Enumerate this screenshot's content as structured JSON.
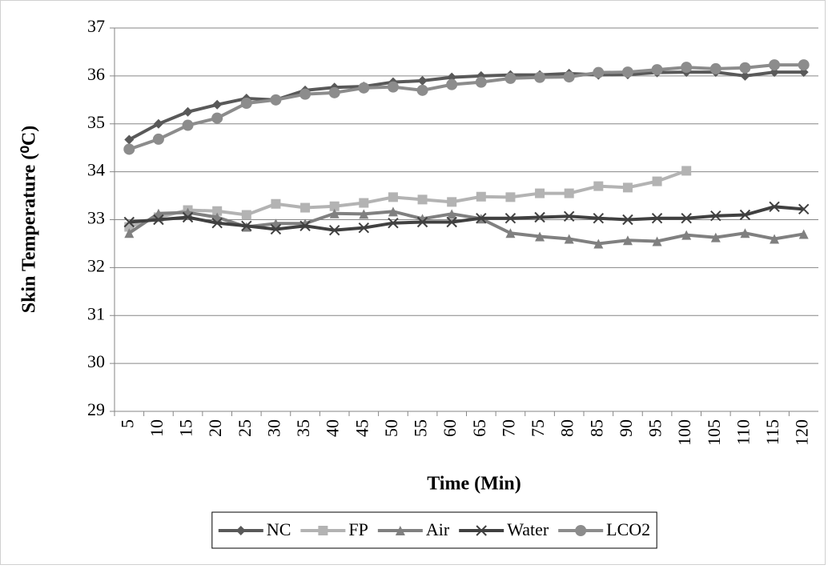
{
  "chart_data": {
    "type": "line",
    "x_label": "Time (Min)",
    "y_label": "Skin Temperature (⁰C)",
    "categories": [
      "5",
      "10",
      "15",
      "20",
      "25",
      "30",
      "35",
      "40",
      "45",
      "50",
      "55",
      "60",
      "65",
      "70",
      "75",
      "80",
      "85",
      "90",
      "95",
      "100",
      "105",
      "110",
      "115",
      "120"
    ],
    "ylim": [
      29,
      37
    ],
    "yticks": [
      29,
      30,
      31,
      32,
      33,
      34,
      35,
      36,
      37
    ],
    "grid": true,
    "legend": "bottom",
    "series": [
      {
        "name": "NC",
        "color": "#595959",
        "marker": "diamond",
        "values": [
          34.67,
          35.0,
          35.25,
          35.4,
          35.53,
          35.5,
          35.7,
          35.76,
          35.78,
          35.87,
          35.9,
          35.97,
          36.0,
          36.02,
          36.02,
          36.05,
          36.02,
          36.03,
          36.07,
          36.08,
          36.08,
          36.0,
          36.08,
          36.08
        ]
      },
      {
        "name": "FP",
        "color": "#b3b3b3",
        "marker": "square",
        "values": [
          32.85,
          33.05,
          33.2,
          33.18,
          33.1,
          33.33,
          33.25,
          33.28,
          33.35,
          33.47,
          33.42,
          33.37,
          33.48,
          33.47,
          33.55,
          33.55,
          33.7,
          33.67,
          33.8,
          34.02,
          null,
          null,
          null,
          null
        ]
      },
      {
        "name": "Air",
        "color": "#808080",
        "marker": "triangle",
        "values": [
          32.72,
          33.13,
          33.15,
          33.05,
          32.85,
          32.92,
          32.92,
          33.13,
          33.12,
          33.17,
          33.02,
          33.12,
          33.02,
          32.72,
          32.65,
          32.6,
          32.5,
          32.57,
          32.55,
          32.68,
          32.63,
          32.72,
          32.6,
          32.7
        ]
      },
      {
        "name": "Water",
        "color": "#404040",
        "marker": "x",
        "values": [
          32.95,
          33.0,
          33.05,
          32.93,
          32.87,
          32.8,
          32.87,
          32.78,
          32.83,
          32.93,
          32.95,
          32.95,
          33.03,
          33.03,
          33.05,
          33.07,
          33.03,
          33.0,
          33.03,
          33.03,
          33.08,
          33.1,
          33.27,
          33.22
        ]
      },
      {
        "name": "LCO2",
        "color": "#8c8c8c",
        "marker": "circle",
        "values": [
          34.47,
          34.68,
          34.97,
          35.12,
          35.43,
          35.5,
          35.62,
          35.65,
          35.75,
          35.77,
          35.7,
          35.82,
          35.87,
          35.95,
          35.97,
          35.98,
          36.07,
          36.08,
          36.13,
          36.18,
          36.15,
          36.17,
          36.23,
          36.23
        ]
      }
    ]
  }
}
